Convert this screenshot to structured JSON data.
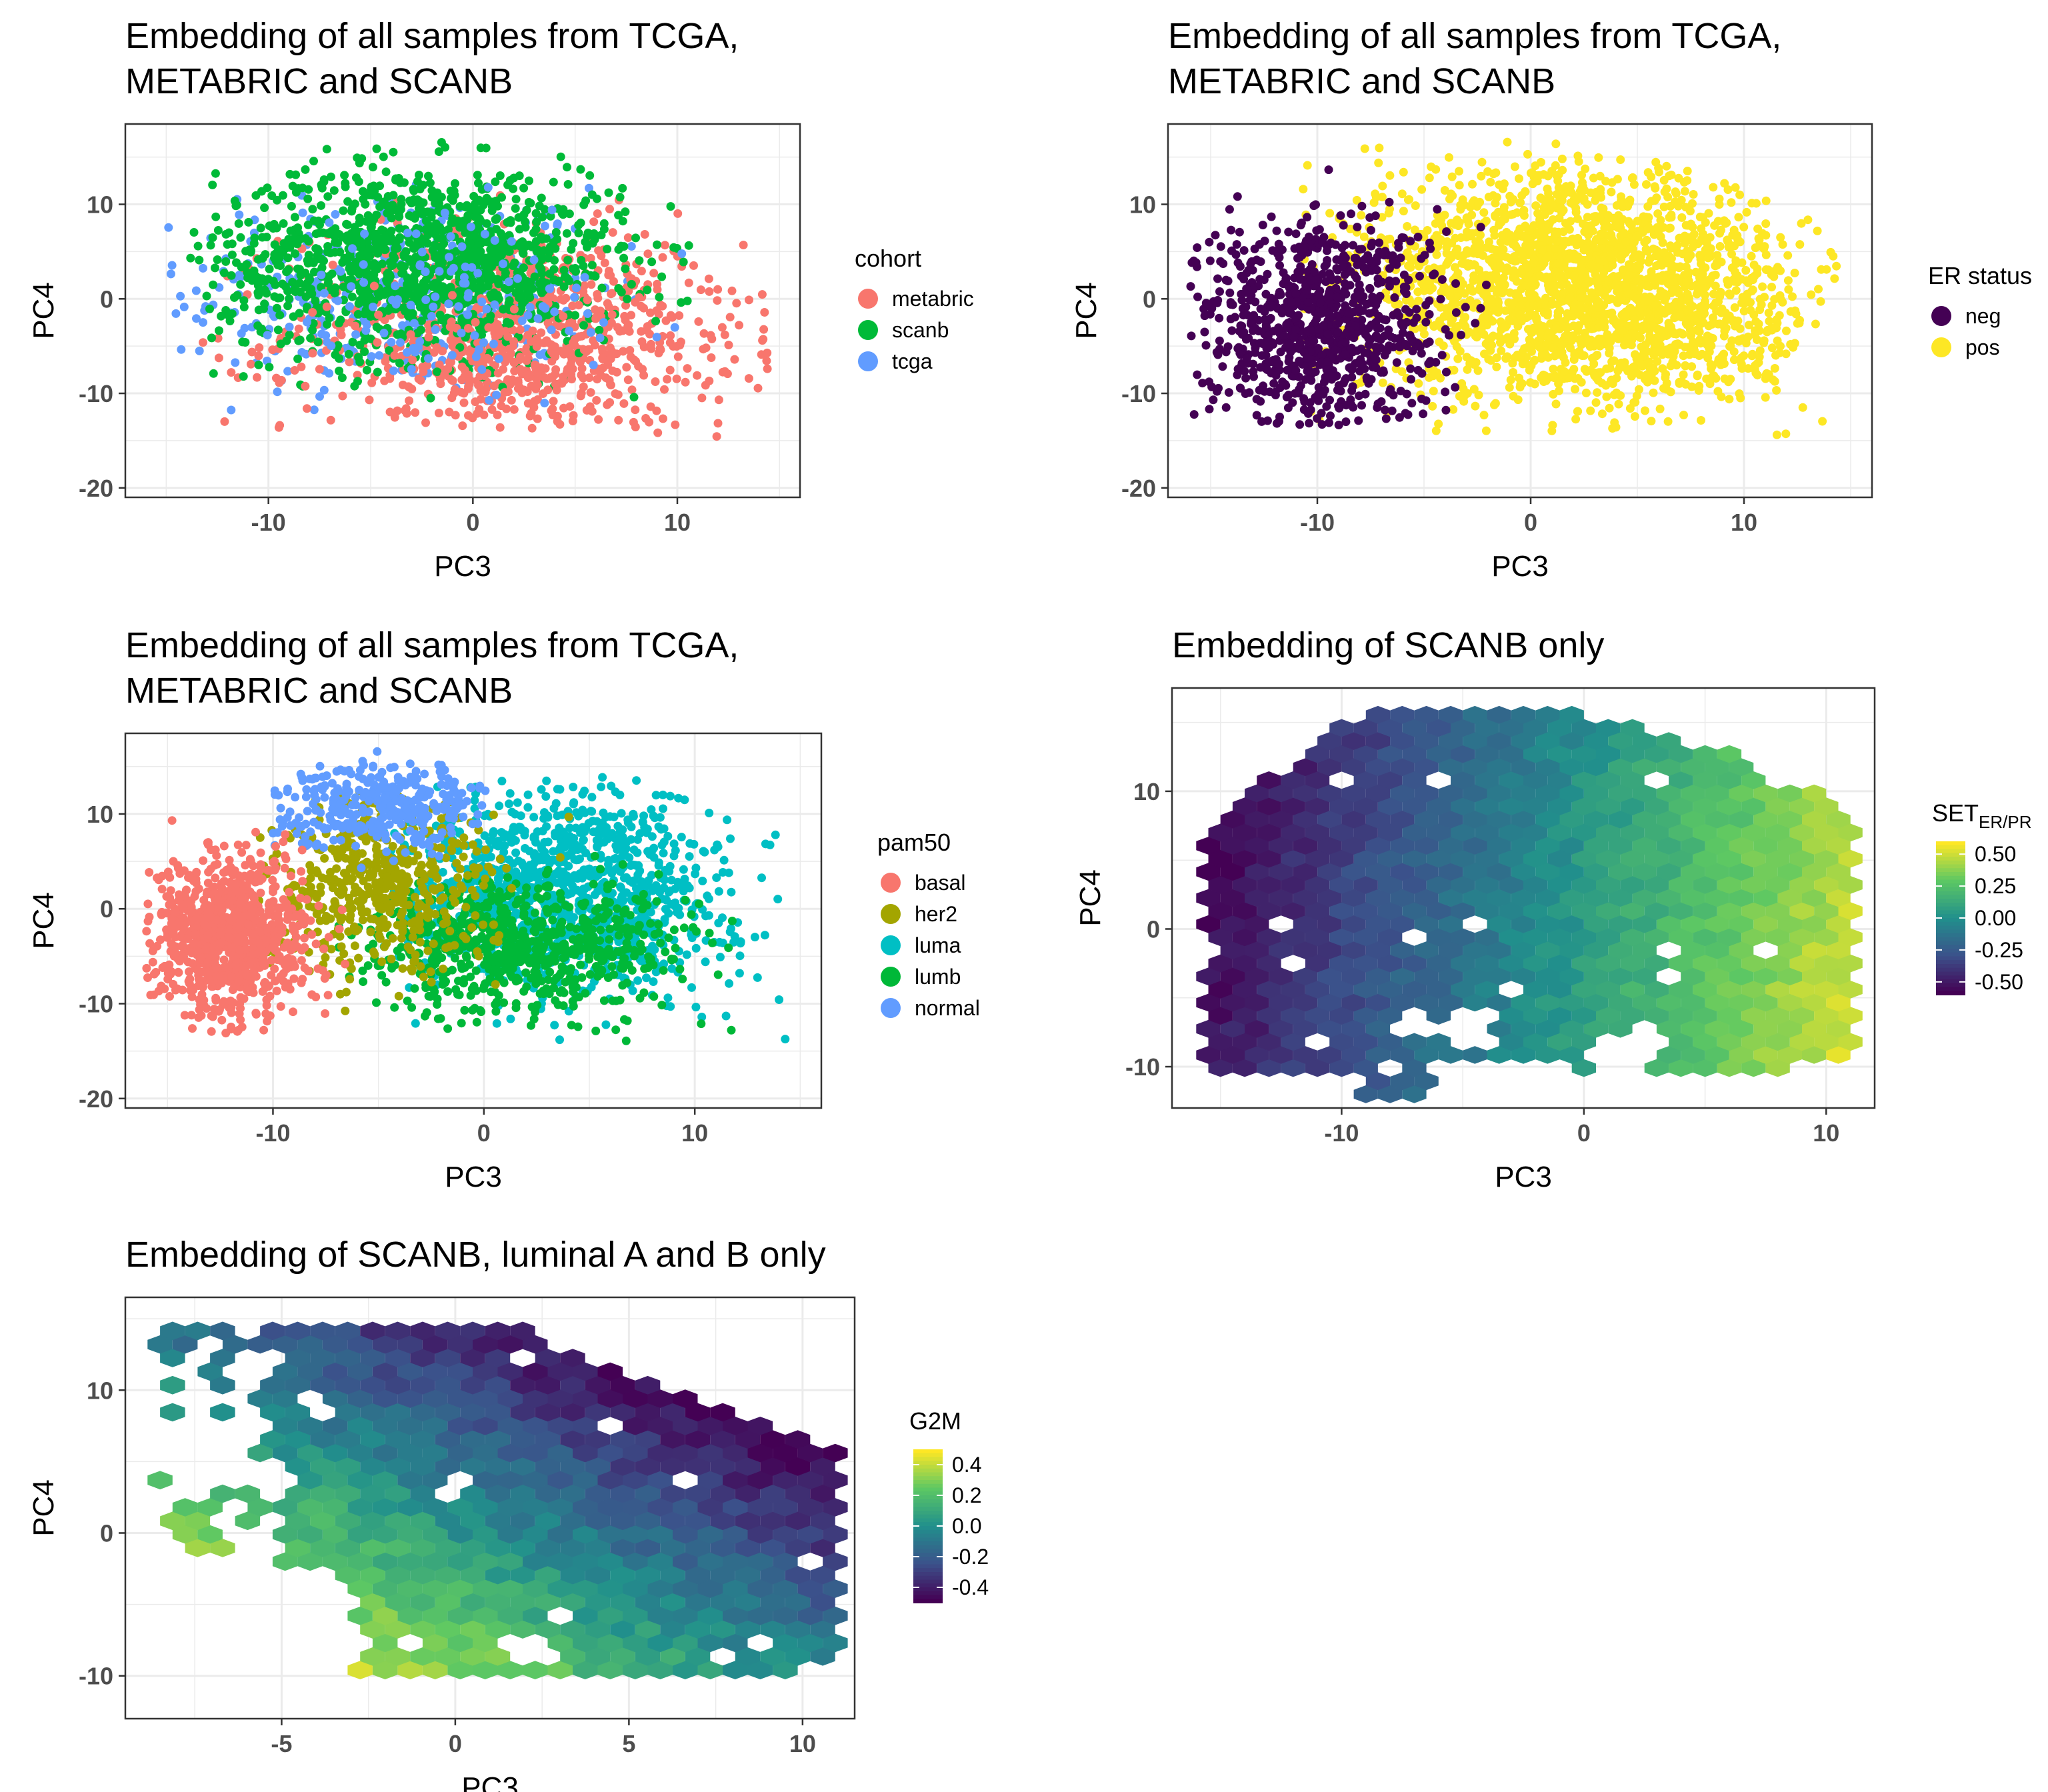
{
  "colors": {
    "metabric": "#F8766D",
    "scanb": "#00BA38",
    "tcga": "#619CFF",
    "neg": "#440154",
    "pos": "#FDE725",
    "basal": "#F8766D",
    "her2": "#A3A500",
    "luma": "#00BFC4",
    "lumb": "#00B838",
    "normal": "#619CFF",
    "viridis": [
      "#440154",
      "#3B528B",
      "#21908C",
      "#5DC863",
      "#FDE725"
    ]
  },
  "chart_data": [
    {
      "type": "scatter",
      "title_lines": [
        "Embedding of all samples from TCGA,",
        "METABRIC and SCANB"
      ],
      "xlabel": "PC3",
      "ylabel": "PC4",
      "xlim": [
        -17,
        16
      ],
      "ylim": [
        -21,
        18.5
      ],
      "xticks": [
        "-10",
        "0",
        "10"
      ],
      "yticks": [
        "10",
        "0",
        "-10",
        "-20"
      ],
      "grid": true,
      "legend": {
        "title": "cohort",
        "position": "right",
        "entries": [
          "metabric",
          "scanb",
          "tcga"
        ]
      },
      "series": [
        {
          "name": "metabric",
          "approx_range_x": [
            -14,
            14.5
          ],
          "approx_range_y": [
            -19,
            12
          ],
          "center": [
            2,
            -4
          ]
        },
        {
          "name": "scanb",
          "approx_range_x": [
            -14,
            11
          ],
          "approx_range_y": [
            -12,
            17
          ],
          "center": [
            -2,
            5
          ]
        },
        {
          "name": "tcga",
          "approx_range_x": [
            -16,
            11
          ],
          "approx_range_y": [
            -14,
            13
          ],
          "center": [
            -3,
            1
          ]
        }
      ]
    },
    {
      "type": "scatter",
      "title_lines": [
        "Embedding of all samples from TCGA,",
        "METABRIC and SCANB"
      ],
      "xlabel": "PC3",
      "ylabel": "PC4",
      "xlim": [
        -17,
        16
      ],
      "ylim": [
        -21,
        18.5
      ],
      "xticks": [
        "-10",
        "0",
        "10"
      ],
      "yticks": [
        "10",
        "0",
        "-10",
        "-20"
      ],
      "grid": true,
      "legend": {
        "title": "ER status",
        "position": "right",
        "entries": [
          "neg",
          "pos"
        ]
      },
      "series": [
        {
          "name": "neg",
          "approx_range_x": [
            -16,
            -2
          ],
          "approx_range_y": [
            -18,
            14
          ],
          "center": [
            -10,
            -3
          ]
        },
        {
          "name": "pos",
          "approx_range_x": [
            -11,
            14.5
          ],
          "approx_range_y": [
            -19,
            17
          ],
          "center": [
            3,
            2
          ]
        }
      ]
    },
    {
      "type": "scatter",
      "title_lines": [
        "Embedding of all samples from TCGA,",
        "METABRIC and SCANB"
      ],
      "xlabel": "PC3",
      "ylabel": "PC4",
      "xlim": [
        -17,
        16
      ],
      "ylim": [
        -21,
        18.5
      ],
      "xticks": [
        "-10",
        "0",
        "10"
      ],
      "yticks": [
        "10",
        "0",
        "-10",
        "-20"
      ],
      "grid": true,
      "legend": {
        "title": "pam50",
        "position": "right",
        "entries": [
          "basal",
          "her2",
          "luma",
          "lumb",
          "normal"
        ]
      },
      "series": [
        {
          "name": "basal",
          "approx_range_x": [
            -16,
            -6
          ],
          "approx_range_y": [
            -18,
            10
          ],
          "center": [
            -12,
            -3
          ]
        },
        {
          "name": "her2",
          "approx_range_x": [
            -11,
            13
          ],
          "approx_range_y": [
            -19,
            13
          ],
          "center": [
            -5,
            2
          ]
        },
        {
          "name": "luma",
          "approx_range_x": [
            -5,
            15
          ],
          "approx_range_y": [
            -16,
            14
          ],
          "center": [
            4,
            3
          ]
        },
        {
          "name": "lumb",
          "approx_range_x": [
            -7,
            12
          ],
          "approx_range_y": [
            -15,
            12
          ],
          "center": [
            2,
            -4
          ]
        },
        {
          "name": "normal",
          "approx_range_x": [
            -10,
            1
          ],
          "approx_range_y": [
            3,
            17
          ],
          "center": [
            -5,
            11
          ]
        }
      ]
    },
    {
      "type": "heatmap",
      "title_lines": [
        "Embedding of SCANB only"
      ],
      "xlabel": "PC3",
      "ylabel": "PC4",
      "xlim": [
        -17,
        12
      ],
      "ylim": [
        -13,
        17.5
      ],
      "xticks": [
        "-10",
        "0",
        "10"
      ],
      "yticks": [
        "10",
        "0",
        "-10"
      ],
      "grid": true,
      "legend": {
        "title": "SET",
        "title_sub": "ER/PR",
        "type": "colorbar",
        "ticks": [
          "0.50",
          "0.25",
          "0.00",
          "-0.25",
          "-0.50"
        ],
        "range": [
          -0.6,
          0.6
        ]
      },
      "trend": "hexbin values increase from about -0.6 at low PC3 to about 0.55 at high PC3"
    },
    {
      "type": "heatmap",
      "title_lines": [
        "Embedding of SCANB, luminal A and B only"
      ],
      "xlabel": "PC3",
      "ylabel": "PC4",
      "xlim": [
        -9.5,
        11.5
      ],
      "ylim": [
        -13,
        16.5
      ],
      "xticks": [
        "-5",
        "0",
        "5",
        "10"
      ],
      "yticks": [
        "10",
        "0",
        "-10"
      ],
      "grid": true,
      "legend": {
        "title": "G2M",
        "type": "colorbar",
        "ticks": [
          "0.4",
          "0.2",
          "0.0",
          "-0.2",
          "-0.4"
        ],
        "range": [
          -0.5,
          0.5
        ]
      },
      "trend": "hexbin values highest (about 0.4) in lower-left (PC3 -3..0, PC4 -10..-3), lowest (about -0.4) in upper-right (PC3 5..8, PC4 4..7)"
    }
  ]
}
